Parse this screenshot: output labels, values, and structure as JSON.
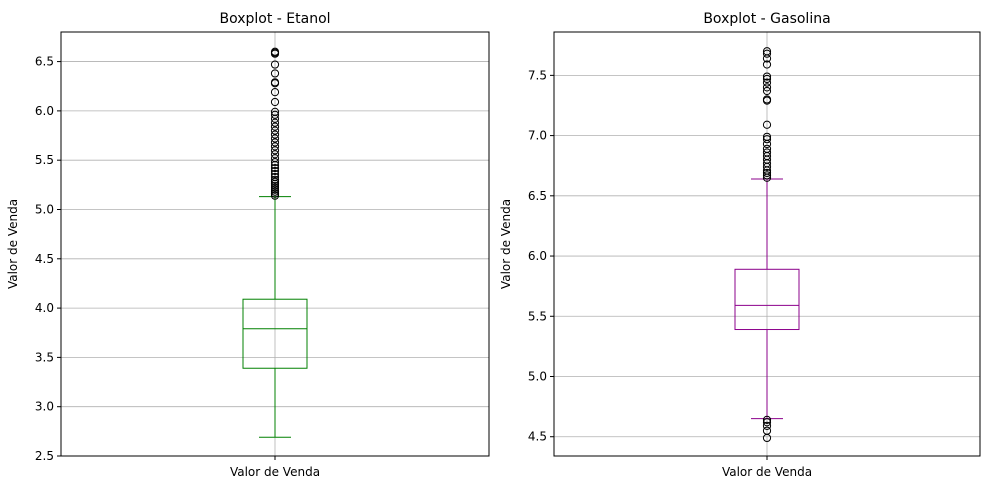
{
  "chart_data": [
    {
      "type": "boxplot",
      "title": "Boxplot - Etanol",
      "xlabel": "",
      "ylabel": "Valor de Venda",
      "categories": [
        "Valor de Venda"
      ],
      "ylim": [
        2.5,
        6.8
      ],
      "yticks": [
        2.5,
        3.0,
        3.5,
        4.0,
        4.5,
        5.0,
        5.5,
        6.0,
        6.5
      ],
      "grid": true,
      "color": "#008000",
      "box": {
        "whisker_low": 2.69,
        "q1": 3.39,
        "median": 3.79,
        "q3": 4.09,
        "whisker_high": 5.13
      },
      "outliers": [
        5.14,
        5.16,
        5.18,
        5.2,
        5.22,
        5.24,
        5.26,
        5.28,
        5.3,
        5.33,
        5.36,
        5.39,
        5.42,
        5.45,
        5.48,
        5.52,
        5.56,
        5.6,
        5.64,
        5.68,
        5.72,
        5.76,
        5.8,
        5.84,
        5.88,
        5.92,
        5.96,
        5.99,
        6.09,
        6.19,
        6.28,
        6.29,
        6.38,
        6.47,
        6.58,
        6.59,
        6.6
      ]
    },
    {
      "type": "boxplot",
      "title": "Boxplot - Gasolina",
      "xlabel": "",
      "ylabel": "Valor de Venda",
      "categories": [
        "Valor de Venda"
      ],
      "ylim": [
        4.34,
        7.86
      ],
      "yticks": [
        4.5,
        5.0,
        5.5,
        6.0,
        6.5,
        7.0,
        7.5
      ],
      "grid": true,
      "color": "#8b008b",
      "box": {
        "whisker_low": 4.65,
        "q1": 5.39,
        "median": 5.59,
        "q3": 5.89,
        "whisker_high": 6.64
      },
      "outliers": [
        4.49,
        4.55,
        4.59,
        4.62,
        4.64,
        6.65,
        6.67,
        6.69,
        6.71,
        6.74,
        6.77,
        6.8,
        6.83,
        6.86,
        6.89,
        6.93,
        6.97,
        6.99,
        7.09,
        7.29,
        7.3,
        7.37,
        7.4,
        7.44,
        7.47,
        7.49,
        7.59,
        7.64,
        7.68,
        7.7
      ]
    }
  ]
}
